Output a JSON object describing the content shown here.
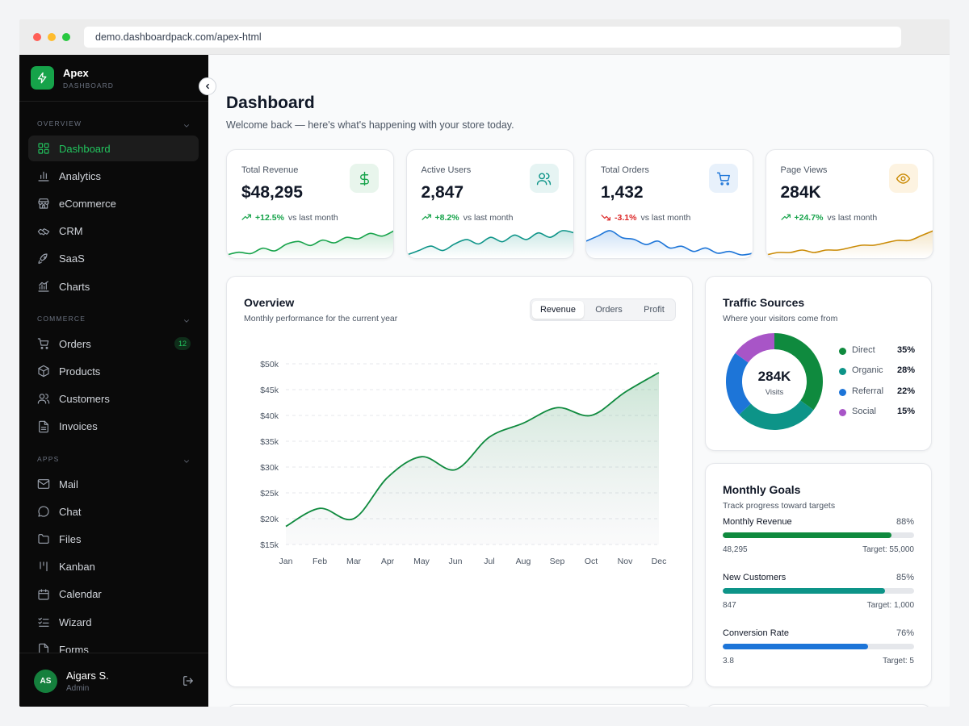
{
  "browser": {
    "url": "demo.dashboardpack.com/apex-html"
  },
  "brand": {
    "name": "Apex",
    "subtitle": "DASHBOARD"
  },
  "sidebar": {
    "sections": [
      {
        "label": "OVERVIEW",
        "items": [
          {
            "label": "Dashboard",
            "icon": "grid-icon",
            "active": true
          },
          {
            "label": "Analytics",
            "icon": "bar-chart-icon"
          },
          {
            "label": "eCommerce",
            "icon": "store-icon"
          },
          {
            "label": "CRM",
            "icon": "handshake-icon"
          },
          {
            "label": "SaaS",
            "icon": "rocket-icon"
          },
          {
            "label": "Charts",
            "icon": "line-chart-icon"
          }
        ]
      },
      {
        "label": "COMMERCE",
        "items": [
          {
            "label": "Orders",
            "icon": "cart-icon",
            "badge": "12"
          },
          {
            "label": "Products",
            "icon": "box-icon"
          },
          {
            "label": "Customers",
            "icon": "users-icon"
          },
          {
            "label": "Invoices",
            "icon": "file-icon"
          }
        ]
      },
      {
        "label": "APPS",
        "items": [
          {
            "label": "Mail",
            "icon": "mail-icon"
          },
          {
            "label": "Chat",
            "icon": "chat-icon"
          },
          {
            "label": "Files",
            "icon": "folder-icon"
          },
          {
            "label": "Kanban",
            "icon": "kanban-icon"
          },
          {
            "label": "Calendar",
            "icon": "calendar-icon"
          },
          {
            "label": "Wizard",
            "icon": "list-check-icon"
          },
          {
            "label": "Forms",
            "icon": "form-icon"
          }
        ]
      }
    ]
  },
  "user": {
    "initials": "AS",
    "name": "Aigars S.",
    "role": "Admin"
  },
  "header": {
    "title": "Dashboard",
    "subtitle": "Welcome back — here's what's happening with your store today."
  },
  "stats": [
    {
      "label": "Total Revenue",
      "value": "$48,295",
      "change": "+12.5%",
      "direction": "up",
      "suffix": "vs last month",
      "icon": "dollar-icon",
      "color": "#16a34a",
      "bg": "#e8f5ec",
      "trend": [
        3,
        5,
        4,
        8,
        6,
        11,
        13,
        10,
        14,
        12,
        16,
        15,
        19,
        17,
        21
      ]
    },
    {
      "label": "Active Users",
      "value": "2,847",
      "change": "+8.2%",
      "direction": "up",
      "suffix": "vs last month",
      "icon": "users-icon",
      "color": "#0d9488",
      "bg": "#e6f4f3",
      "trend": [
        4,
        6,
        8,
        6,
        9,
        11,
        9,
        12,
        10,
        13,
        11,
        14,
        12,
        15,
        14
      ]
    },
    {
      "label": "Total Orders",
      "value": "1,432",
      "change": "-3.1%",
      "direction": "down",
      "suffix": "vs last month",
      "icon": "cart-icon",
      "color": "#1d75d8",
      "bg": "#e8f1fb",
      "trend": [
        15,
        18,
        21,
        17,
        16,
        13,
        15,
        11,
        12,
        9,
        11,
        8,
        9,
        7,
        8
      ]
    },
    {
      "label": "Page Views",
      "value": "284K",
      "change": "+24.7%",
      "direction": "up",
      "suffix": "vs last month",
      "icon": "eye-icon",
      "color": "#ca8a04",
      "bg": "#fdf3e1",
      "trend": [
        2,
        3,
        3,
        4,
        3,
        4,
        4,
        5,
        6,
        6,
        7,
        8,
        8,
        10,
        12
      ]
    }
  ],
  "overview": {
    "title": "Overview",
    "subtitle": "Monthly performance for the current year",
    "tabs": [
      "Revenue",
      "Orders",
      "Profit"
    ],
    "active_tab": "Revenue"
  },
  "traffic": {
    "title": "Traffic Sources",
    "subtitle": "Where your visitors come from",
    "center_value": "284K",
    "center_label": "Visits"
  },
  "goals": {
    "title": "Monthly Goals",
    "subtitle": "Track progress toward targets",
    "items": [
      {
        "name": "Monthly Revenue",
        "pct": "88%",
        "value": 0.88,
        "current": "48,295",
        "target": "Target: 55,000",
        "color": "#0f8a3e"
      },
      {
        "name": "New Customers",
        "pct": "85%",
        "value": 0.85,
        "current": "847",
        "target": "Target: 1,000",
        "color": "#0d9488"
      },
      {
        "name": "Conversion Rate",
        "pct": "76%",
        "value": 0.76,
        "current": "3.8",
        "target": "Target: 5",
        "color": "#1d75d8"
      }
    ]
  },
  "chart_data": [
    {
      "type": "area",
      "title": "",
      "categories": [
        "Jan",
        "Feb",
        "Mar",
        "Apr",
        "May",
        "Jun",
        "Jul",
        "Aug",
        "Sep",
        "Oct",
        "Nov",
        "Dec"
      ],
      "series": [
        {
          "name": "Revenue",
          "values": [
            18500,
            22000,
            20000,
            28000,
            32000,
            29500,
            35800,
            38500,
            41500,
            40000,
            44500,
            48300
          ]
        }
      ],
      "yticks": [
        "$15k",
        "$20k",
        "$25k",
        "$30k",
        "$35k",
        "$40k",
        "$45k",
        "$50k"
      ],
      "ylim": [
        15000,
        50000
      ],
      "grid": true,
      "color": "#0f8a3e"
    },
    {
      "type": "pie",
      "title": "",
      "series": [
        {
          "name": "Direct",
          "value": 35,
          "label": "35%",
          "color": "#0f8a3e"
        },
        {
          "name": "Organic",
          "value": 28,
          "label": "28%",
          "color": "#0d9488"
        },
        {
          "name": "Referral",
          "value": 22,
          "label": "22%",
          "color": "#1d75d8"
        },
        {
          "name": "Social",
          "value": 15,
          "label": "15%",
          "color": "#a855c7"
        }
      ]
    }
  ]
}
